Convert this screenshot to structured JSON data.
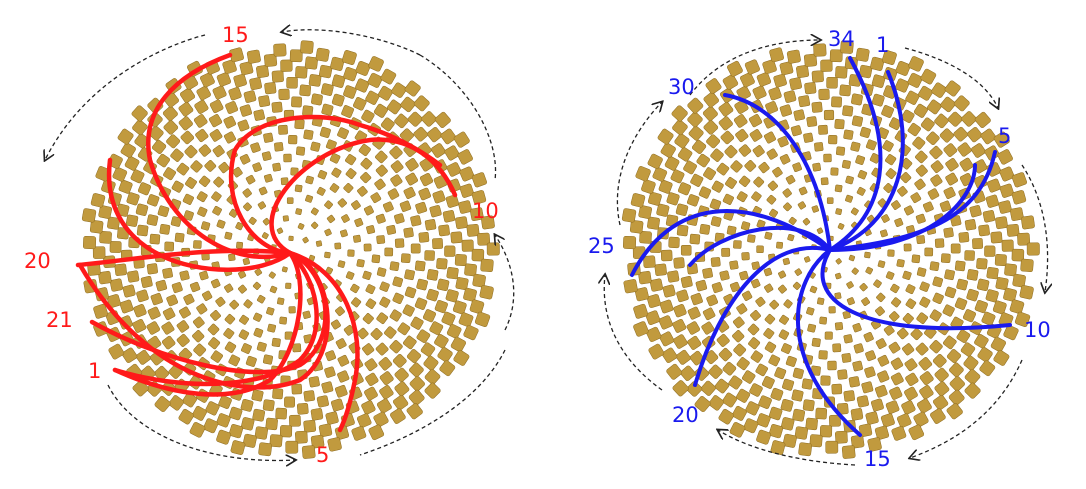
{
  "colors": {
    "left_accent": "#ff1a1a",
    "right_accent": "#1a1aee",
    "seed_fill": "#c19a3e",
    "seed_edge": "#8c6a1f",
    "arrow": "#222222"
  },
  "left_diagram": {
    "labels": [
      "15",
      "10",
      "20",
      "21",
      "1",
      "5"
    ],
    "spiral_count": 21
  },
  "right_diagram": {
    "labels": [
      "34",
      "1",
      "30",
      "5",
      "25",
      "10",
      "20",
      "15"
    ],
    "spiral_count": 34
  }
}
